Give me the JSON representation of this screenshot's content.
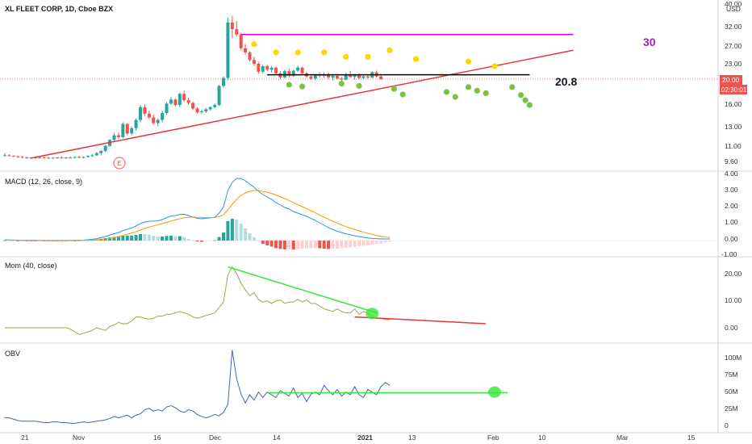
{
  "header": {
    "title": "XL FLEET CORP, 1D, Cboe BZX",
    "currency": "USD",
    "top_label": "40.00"
  },
  "price_axis": {
    "ticks": [
      "32.00",
      "27.00",
      "23.00",
      "20.00",
      "16.00",
      "13.00",
      "11.00",
      "9.60"
    ],
    "last_price": "20.00",
    "countdown": "02:30:01",
    "last_price_color": "#ef5350"
  },
  "annotations": {
    "resistance_label": "30",
    "support_label": "20.8",
    "earnings_marker": "E"
  },
  "time_axis": {
    "ticks": [
      "21",
      "Nov",
      "16",
      "Dec",
      "14",
      "2021",
      "13",
      "Feb",
      "10",
      "Mar",
      "15"
    ],
    "bold": "2021"
  },
  "panes": {
    "macd": {
      "label": "MACD (12, 26, close, 9)",
      "ticks": [
        "4.00",
        "3.00",
        "2.00",
        "1.00",
        "0.00",
        "-1.00"
      ]
    },
    "mom": {
      "label": "Mom (40, close)",
      "ticks": [
        "20.00",
        "10.00",
        "0.00"
      ]
    },
    "obv": {
      "label": "OBV",
      "ticks": [
        "100M",
        "75M",
        "50M",
        "25M",
        "0"
      ]
    }
  },
  "colors": {
    "up": "#26a69a",
    "down": "#ef5350",
    "trend": "#e53935",
    "resistance": "#d500f9",
    "green_line": "#39e639",
    "macd_line": "#2196f3",
    "signal_line": "#ff9800",
    "mom_line": "#9aa64a",
    "obv_line": "#3f66b7",
    "yellow_dot": "#ffd600",
    "green_dot": "#7bc143"
  },
  "chart_data": {
    "type": "candlestick",
    "ticker": "XL FLEET CORP",
    "interval": "1D",
    "exchange": "Cboe BZX",
    "candles": [
      {
        "o": 10.0,
        "h": 10.2,
        "l": 9.9,
        "c": 10.0
      },
      {
        "o": 10.0,
        "h": 10.1,
        "l": 9.9,
        "c": 9.95
      },
      {
        "o": 9.95,
        "h": 10.0,
        "l": 9.85,
        "c": 9.9
      },
      {
        "o": 9.9,
        "h": 10.0,
        "l": 9.8,
        "c": 9.85
      },
      {
        "o": 9.85,
        "h": 9.95,
        "l": 9.75,
        "c": 9.8
      },
      {
        "o": 9.8,
        "h": 9.9,
        "l": 9.7,
        "c": 9.75
      },
      {
        "o": 9.75,
        "h": 9.85,
        "l": 9.7,
        "c": 9.8
      },
      {
        "o": 9.8,
        "h": 9.9,
        "l": 9.7,
        "c": 9.75
      },
      {
        "o": 9.75,
        "h": 9.85,
        "l": 9.7,
        "c": 9.8
      },
      {
        "o": 9.8,
        "h": 9.9,
        "l": 9.7,
        "c": 9.75
      },
      {
        "o": 9.75,
        "h": 9.85,
        "l": 9.7,
        "c": 9.78
      },
      {
        "o": 9.78,
        "h": 9.85,
        "l": 9.72,
        "c": 9.75
      },
      {
        "o": 9.75,
        "h": 9.85,
        "l": 9.7,
        "c": 9.8
      },
      {
        "o": 9.8,
        "h": 9.9,
        "l": 9.72,
        "c": 9.76
      },
      {
        "o": 9.76,
        "h": 9.85,
        "l": 9.7,
        "c": 9.8
      },
      {
        "o": 9.8,
        "h": 9.9,
        "l": 9.72,
        "c": 9.78
      },
      {
        "o": 9.78,
        "h": 9.9,
        "l": 9.72,
        "c": 9.85
      },
      {
        "o": 9.85,
        "h": 9.95,
        "l": 9.75,
        "c": 9.8
      },
      {
        "o": 9.8,
        "h": 9.9,
        "l": 9.72,
        "c": 9.85
      },
      {
        "o": 9.85,
        "h": 10.0,
        "l": 9.8,
        "c": 9.95
      },
      {
        "o": 9.95,
        "h": 10.1,
        "l": 9.85,
        "c": 10.0
      },
      {
        "o": 10.0,
        "h": 10.3,
        "l": 9.95,
        "c": 10.2
      },
      {
        "o": 10.2,
        "h": 10.5,
        "l": 10.0,
        "c": 10.4
      },
      {
        "o": 10.4,
        "h": 11.0,
        "l": 10.3,
        "c": 10.9
      },
      {
        "o": 10.9,
        "h": 11.6,
        "l": 10.8,
        "c": 11.5
      },
      {
        "o": 11.5,
        "h": 12.2,
        "l": 11.3,
        "c": 12.0
      },
      {
        "o": 12.0,
        "h": 12.3,
        "l": 11.6,
        "c": 11.8
      },
      {
        "o": 11.8,
        "h": 13.5,
        "l": 11.7,
        "c": 13.3
      },
      {
        "o": 13.3,
        "h": 13.4,
        "l": 12.0,
        "c": 12.2
      },
      {
        "o": 12.2,
        "h": 13.0,
        "l": 12.0,
        "c": 12.8
      },
      {
        "o": 12.8,
        "h": 14.0,
        "l": 12.5,
        "c": 13.8
      },
      {
        "o": 13.8,
        "h": 15.8,
        "l": 13.5,
        "c": 15.5
      },
      {
        "o": 15.5,
        "h": 15.9,
        "l": 14.3,
        "c": 14.6
      },
      {
        "o": 14.6,
        "h": 15.0,
        "l": 13.9,
        "c": 14.1
      },
      {
        "o": 14.1,
        "h": 14.5,
        "l": 13.2,
        "c": 13.4
      },
      {
        "o": 13.4,
        "h": 14.0,
        "l": 13.0,
        "c": 13.8
      },
      {
        "o": 13.8,
        "h": 15.0,
        "l": 13.5,
        "c": 14.7
      },
      {
        "o": 14.7,
        "h": 16.2,
        "l": 14.5,
        "c": 16.0
      },
      {
        "o": 16.0,
        "h": 17.0,
        "l": 15.8,
        "c": 16.6
      },
      {
        "o": 16.6,
        "h": 16.8,
        "l": 15.6,
        "c": 15.8
      },
      {
        "o": 15.8,
        "h": 17.7,
        "l": 15.5,
        "c": 17.5
      },
      {
        "o": 17.5,
        "h": 18.0,
        "l": 16.3,
        "c": 16.5
      },
      {
        "o": 16.5,
        "h": 16.9,
        "l": 15.8,
        "c": 16.1
      },
      {
        "o": 16.1,
        "h": 16.3,
        "l": 15.1,
        "c": 15.3
      },
      {
        "o": 15.3,
        "h": 15.5,
        "l": 14.6,
        "c": 14.8
      },
      {
        "o": 14.8,
        "h": 15.1,
        "l": 14.6,
        "c": 14.9
      },
      {
        "o": 14.9,
        "h": 15.4,
        "l": 14.7,
        "c": 15.2
      },
      {
        "o": 15.2,
        "h": 15.6,
        "l": 15.0,
        "c": 15.5
      },
      {
        "o": 15.5,
        "h": 16.0,
        "l": 15.3,
        "c": 15.8
      },
      {
        "o": 15.8,
        "h": 19.0,
        "l": 15.7,
        "c": 18.8
      },
      {
        "o": 18.8,
        "h": 20.5,
        "l": 18.5,
        "c": 20.2
      },
      {
        "o": 20.2,
        "h": 35.0,
        "l": 19.8,
        "c": 33.5
      },
      {
        "o": 33.5,
        "h": 35.5,
        "l": 29.0,
        "c": 31.5
      },
      {
        "o": 31.5,
        "h": 34.0,
        "l": 29.5,
        "c": 30.0
      },
      {
        "o": 30.0,
        "h": 30.5,
        "l": 26.0,
        "c": 26.5
      },
      {
        "o": 26.5,
        "h": 27.5,
        "l": 25.0,
        "c": 25.5
      },
      {
        "o": 25.5,
        "h": 25.8,
        "l": 23.5,
        "c": 23.8
      },
      {
        "o": 23.8,
        "h": 24.5,
        "l": 22.5,
        "c": 23.0
      },
      {
        "o": 23.0,
        "h": 23.4,
        "l": 21.0,
        "c": 21.4
      },
      {
        "o": 21.4,
        "h": 22.8,
        "l": 21.0,
        "c": 22.5
      },
      {
        "o": 22.5,
        "h": 22.8,
        "l": 21.5,
        "c": 21.8
      },
      {
        "o": 21.8,
        "h": 22.5,
        "l": 21.2,
        "c": 22.2
      },
      {
        "o": 22.2,
        "h": 22.4,
        "l": 20.8,
        "c": 21.1
      },
      {
        "o": 21.1,
        "h": 21.5,
        "l": 20.0,
        "c": 20.3
      },
      {
        "o": 20.3,
        "h": 21.8,
        "l": 20.1,
        "c": 21.5
      },
      {
        "o": 21.5,
        "h": 22.0,
        "l": 20.3,
        "c": 20.6
      },
      {
        "o": 20.6,
        "h": 21.8,
        "l": 20.4,
        "c": 21.6
      },
      {
        "o": 21.6,
        "h": 22.6,
        "l": 21.3,
        "c": 22.2
      },
      {
        "o": 22.2,
        "h": 22.4,
        "l": 20.9,
        "c": 21.1
      },
      {
        "o": 21.1,
        "h": 21.4,
        "l": 20.2,
        "c": 20.5
      },
      {
        "o": 20.5,
        "h": 20.7,
        "l": 19.9,
        "c": 20.1
      },
      {
        "o": 20.1,
        "h": 21.0,
        "l": 19.8,
        "c": 20.8
      },
      {
        "o": 20.8,
        "h": 21.3,
        "l": 20.3,
        "c": 20.6
      },
      {
        "o": 20.6,
        "h": 21.2,
        "l": 20.2,
        "c": 20.9
      },
      {
        "o": 20.9,
        "h": 21.2,
        "l": 20.0,
        "c": 20.3
      },
      {
        "o": 20.3,
        "h": 20.8,
        "l": 19.8,
        "c": 20.6
      },
      {
        "o": 20.6,
        "h": 20.9,
        "l": 19.9,
        "c": 20.1
      },
      {
        "o": 20.1,
        "h": 20.4,
        "l": 19.6,
        "c": 19.9
      },
      {
        "o": 19.9,
        "h": 21.2,
        "l": 19.8,
        "c": 20.9
      },
      {
        "o": 20.9,
        "h": 21.5,
        "l": 20.2,
        "c": 20.4
      },
      {
        "o": 20.4,
        "h": 20.9,
        "l": 19.9,
        "c": 20.7
      },
      {
        "o": 20.7,
        "h": 21.1,
        "l": 20.0,
        "c": 20.2
      },
      {
        "o": 20.2,
        "h": 20.8,
        "l": 19.9,
        "c": 20.5
      },
      {
        "o": 20.5,
        "h": 20.7,
        "l": 20.0,
        "c": 20.3
      },
      {
        "o": 20.3,
        "h": 21.5,
        "l": 20.1,
        "c": 21.3
      },
      {
        "o": 21.3,
        "h": 21.6,
        "l": 20.3,
        "c": 20.5
      },
      {
        "o": 20.5,
        "h": 21.0,
        "l": 19.8,
        "c": 20.0
      }
    ],
    "overlays": {
      "trendline": {
        "from": {
          "bar": 6,
          "price": 9.75
        },
        "to": {
          "bar": 130,
          "price": 26.0
        }
      },
      "resistance": {
        "price": 30.0,
        "from_bar": 54,
        "to_bar": 130
      },
      "support": {
        "price": 20.8,
        "from_bar": 60,
        "to_bar": 120
      }
    },
    "macd": {
      "macd_line": [
        0.05,
        0.04,
        0.03,
        0.02,
        0.02,
        0.01,
        0.01,
        0.0,
        0.0,
        0.0,
        0.0,
        0.0,
        0.0,
        0.0,
        0.0,
        0.01,
        0.01,
        0.02,
        0.03,
        0.05,
        0.08,
        0.12,
        0.18,
        0.25,
        0.33,
        0.42,
        0.5,
        0.62,
        0.7,
        0.78,
        0.9,
        1.05,
        1.15,
        1.2,
        1.2,
        1.22,
        1.3,
        1.42,
        1.52,
        1.55,
        1.62,
        1.63,
        1.55,
        1.45,
        1.38,
        1.35,
        1.38,
        1.4,
        1.45,
        1.7,
        2.1,
        3.1,
        3.6,
        3.85,
        3.85,
        3.7,
        3.5,
        3.3,
        3.05,
        2.85,
        2.7,
        2.55,
        2.35,
        2.2,
        2.05,
        1.95,
        1.8,
        1.7,
        1.6,
        1.5,
        1.38,
        1.25,
        1.1,
        0.95,
        0.8,
        0.68,
        0.58,
        0.5,
        0.42,
        0.36,
        0.3,
        0.25,
        0.2,
        0.16,
        0.13,
        0.12,
        0.1,
        0.1,
        0.1
      ],
      "signal_line": [
        0.03,
        0.03,
        0.03,
        0.03,
        0.02,
        0.02,
        0.02,
        0.02,
        0.01,
        0.01,
        0.01,
        0.01,
        0.01,
        0.01,
        0.01,
        0.01,
        0.01,
        0.01,
        0.02,
        0.02,
        0.03,
        0.05,
        0.07,
        0.1,
        0.14,
        0.19,
        0.25,
        0.32,
        0.39,
        0.47,
        0.55,
        0.65,
        0.75,
        0.84,
        0.91,
        0.98,
        1.05,
        1.13,
        1.21,
        1.28,
        1.35,
        1.41,
        1.44,
        1.45,
        1.44,
        1.43,
        1.42,
        1.42,
        1.43,
        1.48,
        1.6,
        1.9,
        2.25,
        2.55,
        2.8,
        2.95,
        3.05,
        3.1,
        3.1,
        3.05,
        3.0,
        2.92,
        2.82,
        2.72,
        2.6,
        2.48,
        2.35,
        2.22,
        2.1,
        1.98,
        1.85,
        1.72,
        1.58,
        1.45,
        1.32,
        1.2,
        1.08,
        0.97,
        0.86,
        0.77,
        0.68,
        0.6,
        0.52,
        0.45,
        0.38,
        0.32,
        0.27,
        0.22,
        0.18
      ]
    },
    "momentum": {
      "values": [
        0.0,
        0.0,
        0.0,
        0.0,
        0.0,
        0.0,
        0.0,
        0.0,
        0.0,
        0.0,
        0.0,
        0.0,
        0.0,
        0.0,
        0.0,
        -0.5,
        -1.5,
        -2.5,
        -2.0,
        -1.5,
        -1.0,
        0.0,
        -0.5,
        -1.0,
        0.5,
        1.0,
        2.0,
        1.5,
        1.5,
        2.5,
        4.0,
        4.0,
        3.5,
        3.2,
        3.5,
        4.3,
        4.3,
        5.0,
        5.0,
        5.5,
        6.0,
        5.5,
        5.0,
        4.0,
        3.5,
        4.0,
        4.5,
        5.0,
        5.5,
        7.5,
        9.5,
        19.5,
        22.5,
        20.0,
        16.5,
        14.0,
        11.8,
        13.0,
        10.5,
        9.5,
        10.0,
        9.0,
        10.0,
        10.2,
        9.0,
        9.5,
        9.5,
        10.5,
        9.5,
        10.3,
        9.0,
        9.0,
        8.0,
        7.0,
        6.5,
        6.0,
        7.0,
        6.0,
        5.5,
        5.5,
        7.0,
        5.0,
        6.0,
        5.5,
        4.0,
        3.5,
        3.5,
        3.0,
        3.0
      ],
      "trendlines": [
        {
          "color": "green",
          "from": {
            "bar": 51,
            "value": 22.5
          },
          "to": {
            "bar": 85,
            "value": 5.5
          }
        },
        {
          "color": "red",
          "from": {
            "bar": 80,
            "value": 4.0
          },
          "to": {
            "bar": 110,
            "value": 1.5
          }
        }
      ]
    },
    "obv": {
      "values": [
        10,
        10,
        8,
        6,
        5,
        5,
        5,
        5,
        4,
        3,
        3,
        4,
        4,
        3,
        3,
        2,
        2,
        3,
        4,
        3,
        4,
        5,
        6,
        7,
        9,
        12,
        10,
        12,
        14,
        10,
        14,
        16,
        22,
        24,
        20,
        22,
        20,
        26,
        28,
        25,
        20,
        18,
        22,
        20,
        15,
        12,
        10,
        12,
        15,
        13,
        18,
        30,
        110,
        68,
        45,
        32,
        44,
        36,
        48,
        40,
        48,
        44,
        40,
        50,
        46,
        42,
        54,
        40,
        46,
        34,
        45,
        48,
        44,
        58,
        50,
        44,
        52,
        42,
        48,
        44,
        56,
        44,
        40,
        52,
        48,
        44,
        56,
        62,
        58
      ],
      "trendline": {
        "from_bar": 60,
        "to_bar": 115,
        "value": 47
      }
    },
    "units": {
      "price": "USD",
      "obv": "shares"
    }
  }
}
